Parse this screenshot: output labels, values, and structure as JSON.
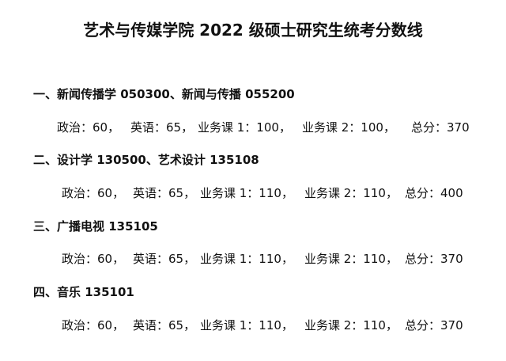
{
  "title": "艺术与传媒学院 2022 级硕士研究生统考分数线",
  "sections": [
    {
      "heading": "一、新闻传播学 050300、新闻与传播 055200",
      "scores": [
        "政治：60，",
        "英语：65，",
        "业务课 1：100，",
        "业务课 2：100，",
        "总分：370"
      ]
    },
    {
      "heading": "二、设计学 130500、艺术设计 135108",
      "scores": [
        "政治：60，",
        "英语：65，",
        "业务课 1：110，",
        "业务课 2：110，",
        "总分：400"
      ]
    },
    {
      "heading": "三、广播电视 135105",
      "scores": [
        "政治：60，",
        "英语：65，",
        "业务课 1：110，",
        "业务课 2：110，",
        "总分：370"
      ]
    },
    {
      "heading": "四、音乐 135101",
      "scores": [
        "政治：60，",
        "英语：65，",
        "业务课 1：110，",
        "业务课 2：110，",
        "总分：370"
      ]
    }
  ]
}
